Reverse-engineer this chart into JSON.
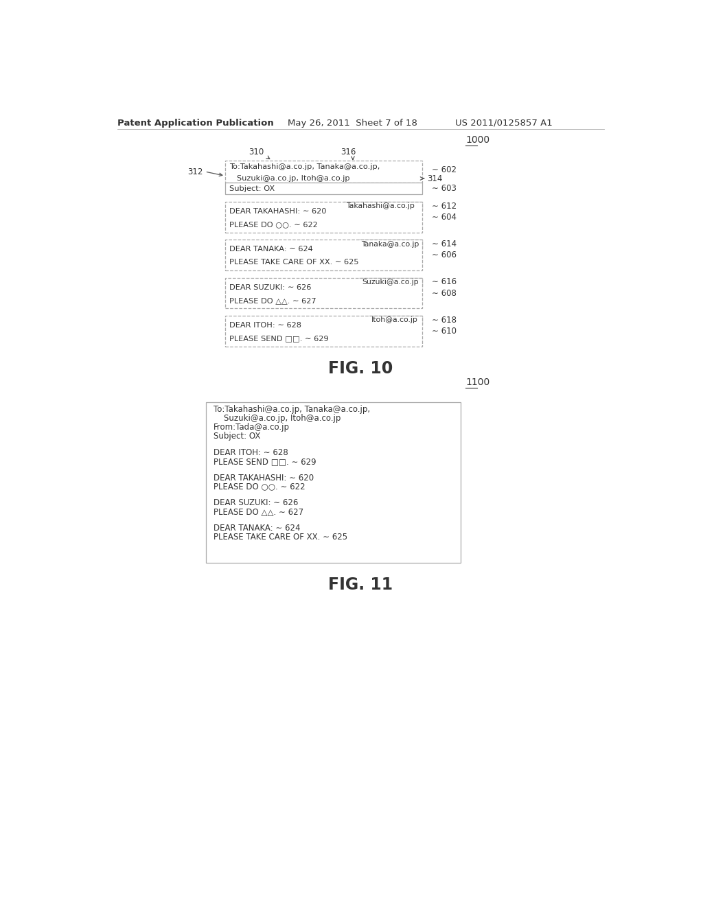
{
  "bg_color": "#ffffff",
  "text_color": "#333333",
  "line_color": "#888888",
  "header_text": "Patent Application Publication",
  "header_date": "May 26, 2011  Sheet 7 of 18",
  "header_patent": "US 2011/0125857 A1",
  "fig10_label": "FIG. 10",
  "fig11_label": "FIG. 11",
  "ref_1000": "1000",
  "ref_1100": "1100",
  "fig10": {
    "label_310": "310",
    "label_316": "316",
    "label_312": "312",
    "label_314": "314",
    "label_602": "602",
    "label_603": "603",
    "label_604": "604",
    "label_606": "606",
    "label_608": "608",
    "label_610": "610",
    "label_612": "612",
    "label_614": "614",
    "label_616": "616",
    "label_618": "618",
    "header_box_line1": "To:Takahashi@a.co.jp, Tanaka@a.co.jp,",
    "header_box_line2": "   Suzuki@a.co.jp, Itoh@a.co.jp",
    "subject_text": "Subject: OX",
    "takahashi_tab": "Takahashi@a.co.jp",
    "dear_tak": "DEAR TAKAHASHI: ∼ 620",
    "please_tak": "PLEASE DO ○○. ∼ 622",
    "tanaka_tab": "Tanaka@a.co.jp",
    "dear_tan": "DEAR TANAKA: ∼ 624",
    "please_tan": "PLEASE TAKE CARE OF XX. ∼ 625",
    "suzuki_tab": "Suzuki@a.co.jp",
    "dear_suz": "DEAR SUZUKI: ∼ 626",
    "please_suz": "PLEASE DO △△. ∼ 627",
    "itoh_tab": "Itoh@a.co.jp",
    "dear_ito": "DEAR ITOH: ∼ 628",
    "please_ito": "PLEASE SEND □□. ∼ 629"
  },
  "fig11": {
    "to_line1": "To:Takahashi@a.co.jp, Tanaka@a.co.jp,",
    "to_line2": "    Suzuki@a.co.jp, Itoh@a.co.jp",
    "from_line": "From:Tada@a.co.jp",
    "subject_line": "Subject: OX",
    "dear_ito": "DEAR ITOH: ∼ 628",
    "please_ito": "PLEASE SEND □□. ∼ 629",
    "dear_tak": "DEAR TAKAHASHI: ∼ 620",
    "please_tak": "PLEASE DO ○○. ∼ 622",
    "dear_suz": "DEAR SUZUKI: ∼ 626",
    "please_suz": "PLEASE DO △△. ∼ 627",
    "dear_tan": "DEAR TANAKA: ∼ 624",
    "please_tan": "PLEASE TAKE CARE OF XX. ∼ 625"
  }
}
